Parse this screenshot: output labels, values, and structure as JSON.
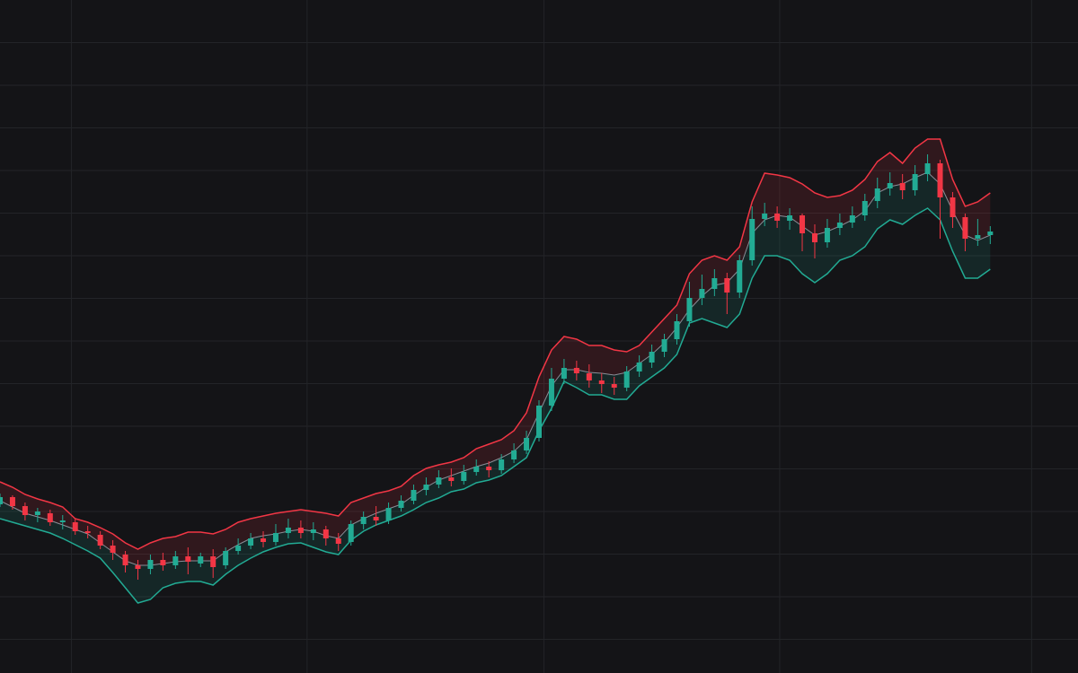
{
  "chart_data": {
    "type": "candlestick",
    "x": [
      0,
      1,
      2,
      3,
      4,
      5,
      6,
      7,
      8,
      9,
      10,
      11,
      12,
      13,
      14,
      15,
      16,
      17,
      18,
      19,
      20,
      21,
      22,
      23,
      24,
      25,
      26,
      27,
      28,
      29,
      30,
      31,
      32,
      33,
      34,
      35,
      36,
      37,
      38,
      39,
      40,
      41,
      42,
      43,
      44,
      45,
      46,
      47,
      48,
      49,
      50,
      51,
      52,
      53,
      54,
      55,
      56,
      57,
      58,
      59,
      60,
      61,
      62,
      63,
      64,
      65,
      66,
      67,
      68,
      69,
      70,
      71,
      72,
      73,
      74,
      75,
      76,
      77,
      78,
      79
    ],
    "open": [
      188,
      196,
      186,
      176,
      178,
      168,
      168,
      158,
      154,
      142,
      132,
      120,
      116,
      126,
      120,
      130,
      122,
      130,
      120,
      136,
      142,
      150,
      146,
      156,
      162,
      156,
      160,
      150,
      146,
      166,
      174,
      170,
      184,
      192,
      204,
      210,
      218,
      214,
      224,
      230,
      226,
      238,
      248,
      262,
      298,
      328,
      340,
      334,
      326,
      322,
      318,
      336,
      346,
      358,
      372,
      392,
      418,
      428,
      440,
      424,
      460,
      506,
      512,
      504,
      510,
      490,
      480,
      496,
      502,
      510,
      526,
      540,
      546,
      538,
      556,
      568,
      530,
      508,
      484,
      488
    ],
    "high": [
      200,
      198,
      190,
      184,
      182,
      176,
      172,
      164,
      158,
      148,
      136,
      126,
      132,
      134,
      136,
      140,
      134,
      138,
      140,
      150,
      156,
      158,
      166,
      172,
      170,
      168,
      164,
      156,
      170,
      180,
      186,
      190,
      198,
      210,
      218,
      226,
      228,
      232,
      238,
      236,
      244,
      256,
      270,
      304,
      340,
      350,
      348,
      344,
      334,
      330,
      342,
      354,
      366,
      378,
      400,
      436,
      444,
      450,
      446,
      466,
      520,
      524,
      520,
      518,
      512,
      500,
      506,
      512,
      520,
      534,
      552,
      558,
      556,
      566,
      578,
      572,
      536,
      512,
      506,
      498
    ],
    "low": [
      185,
      182,
      170,
      168,
      164,
      160,
      154,
      150,
      138,
      126,
      112,
      104,
      110,
      114,
      116,
      110,
      118,
      106,
      116,
      132,
      138,
      140,
      142,
      150,
      150,
      148,
      142,
      136,
      142,
      160,
      164,
      166,
      180,
      188,
      198,
      206,
      208,
      210,
      220,
      218,
      222,
      234,
      244,
      258,
      292,
      322,
      326,
      318,
      312,
      310,
      314,
      330,
      340,
      352,
      366,
      386,
      410,
      420,
      400,
      418,
      454,
      498,
      496,
      494,
      470,
      462,
      474,
      488,
      496,
      504,
      518,
      532,
      528,
      532,
      548,
      484,
      496,
      470,
      476,
      478
    ],
    "close": [
      196,
      186,
      176,
      180,
      168,
      170,
      158,
      156,
      142,
      134,
      120,
      116,
      126,
      120,
      130,
      124,
      130,
      118,
      136,
      142,
      150,
      146,
      156,
      162,
      156,
      160,
      150,
      144,
      166,
      174,
      170,
      184,
      192,
      204,
      210,
      218,
      214,
      224,
      230,
      226,
      238,
      248,
      262,
      298,
      328,
      340,
      334,
      326,
      322,
      318,
      336,
      346,
      358,
      372,
      392,
      418,
      428,
      440,
      424,
      460,
      506,
      512,
      504,
      510,
      490,
      480,
      496,
      502,
      510,
      526,
      540,
      546,
      538,
      556,
      568,
      530,
      508,
      484,
      488,
      492
    ],
    "upper": [
      213,
      207,
      199,
      194,
      190,
      185,
      172,
      168,
      162,
      155,
      145,
      138,
      145,
      150,
      152,
      157,
      157,
      155,
      160,
      168,
      172,
      175,
      178,
      180,
      182,
      180,
      178,
      175,
      190,
      195,
      200,
      203,
      208,
      220,
      228,
      232,
      235,
      240,
      250,
      255,
      260,
      270,
      290,
      330,
      360,
      375,
      372,
      365,
      365,
      360,
      358,
      365,
      380,
      395,
      410,
      445,
      460,
      465,
      460,
      475,
      525,
      557,
      555,
      552,
      545,
      535,
      530,
      532,
      538,
      550,
      570,
      580,
      568,
      585,
      595,
      595,
      550,
      520,
      525,
      535
    ],
    "middle": [
      192,
      185,
      178,
      174,
      170,
      165,
      160,
      155,
      145,
      135,
      125,
      120,
      120,
      122,
      124,
      125,
      125,
      125,
      135,
      143,
      150,
      153,
      155,
      158,
      160,
      158,
      153,
      150,
      165,
      172,
      178,
      183,
      188,
      198,
      207,
      215,
      220,
      225,
      230,
      234,
      240,
      247,
      260,
      290,
      320,
      338,
      338,
      335,
      334,
      332,
      335,
      345,
      355,
      368,
      385,
      405,
      420,
      432,
      435,
      450,
      490,
      505,
      510,
      508,
      498,
      488,
      492,
      498,
      505,
      515,
      535,
      542,
      545,
      552,
      558,
      545,
      515,
      488,
      482,
      488
    ],
    "lower": [
      172,
      168,
      164,
      160,
      156,
      150,
      143,
      136,
      128,
      112,
      95,
      78,
      82,
      95,
      100,
      102,
      102,
      98,
      110,
      120,
      128,
      135,
      140,
      144,
      145,
      140,
      135,
      132,
      148,
      158,
      165,
      170,
      175,
      182,
      190,
      195,
      202,
      205,
      212,
      215,
      220,
      230,
      240,
      270,
      295,
      325,
      318,
      310,
      310,
      305,
      305,
      320,
      330,
      340,
      355,
      390,
      395,
      390,
      385,
      400,
      440,
      465,
      465,
      460,
      445,
      435,
      445,
      460,
      465,
      475,
      495,
      505,
      500,
      510,
      518,
      505,
      470,
      440,
      440,
      450
    ],
    "up_color": "#22ab94",
    "down_color": "#f23645",
    "upper_color": "#f23645",
    "lower_color": "#22ab94",
    "middle_color": "#8a8d96",
    "xlim": [
      0,
      86
    ],
    "xticks": [
      5.7,
      24.5,
      43.4,
      62.2,
      82.3
    ],
    "ylim": [
      0,
      750
    ],
    "yticks": [
      37.5,
      85,
      132.5,
      180,
      227.5,
      275,
      322.5,
      370,
      417.5,
      465,
      512.5,
      560,
      607.5,
      655,
      702.5
    ],
    "grid": true
  }
}
